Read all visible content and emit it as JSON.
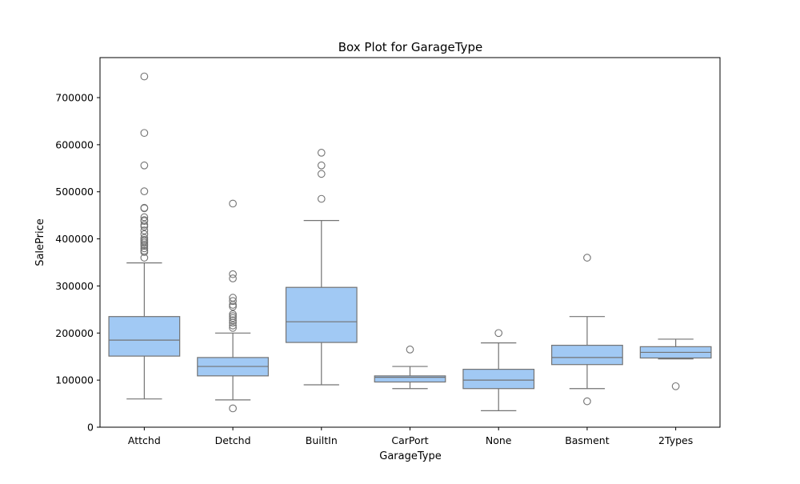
{
  "chart_data": {
    "type": "box",
    "title": "Box Plot for GarageType",
    "xlabel": "GarageType",
    "ylabel": "SalePrice",
    "ylim": [
      0,
      785000
    ],
    "yticks": [
      0,
      100000,
      200000,
      300000,
      400000,
      500000,
      600000,
      700000
    ],
    "grid": false,
    "legend": "none",
    "colors": {
      "box_fill": "#a1c9f4",
      "line": "#737373",
      "axis": "#000000"
    },
    "categories": [
      "Attchd",
      "Detchd",
      "BuiltIn",
      "CarPort",
      "None",
      "Basment",
      "2Types"
    ],
    "boxes": [
      {
        "category": "Attchd",
        "whisker_low": 60000,
        "q1": 151000,
        "median": 185000,
        "q3": 235000,
        "whisker_high": 349000,
        "outliers": [
          745000,
          625000,
          556000,
          501000,
          466000,
          465000,
          446000,
          440000,
          438000,
          430000,
          426000,
          418000,
          410000,
          402000,
          398000,
          395000,
          392000,
          388000,
          385000,
          380000,
          375000,
          372000,
          360000
        ]
      },
      {
        "category": "Detchd",
        "whisker_low": 58000,
        "q1": 109000,
        "median": 129000,
        "q3": 148000,
        "whisker_high": 200000,
        "outliers": [
          475000,
          325000,
          316000,
          275000,
          268000,
          260000,
          256000,
          240000,
          236000,
          232000,
          227000,
          222000,
          216000,
          211000,
          40000
        ]
      },
      {
        "category": "BuiltIn",
        "whisker_low": 90000,
        "q1": 180000,
        "median": 224000,
        "q3": 297000,
        "whisker_high": 439000,
        "outliers": [
          583000,
          556000,
          538000,
          485000
        ]
      },
      {
        "category": "CarPort",
        "whisker_low": 82000,
        "q1": 96000,
        "median": 106000,
        "q3": 109000,
        "whisker_high": 129000,
        "outliers": [
          165000
        ]
      },
      {
        "category": "None",
        "whisker_low": 35000,
        "q1": 82000,
        "median": 100000,
        "q3": 123000,
        "whisker_high": 179000,
        "outliers": [
          200000
        ]
      },
      {
        "category": "Basment",
        "whisker_low": 82000,
        "q1": 133000,
        "median": 148000,
        "q3": 174000,
        "whisker_high": 235000,
        "outliers": [
          360000,
          55000
        ]
      },
      {
        "category": "2Types",
        "whisker_low": 145000,
        "q1": 147000,
        "median": 159000,
        "q3": 171000,
        "whisker_high": 187000,
        "outliers": [
          87000
        ]
      }
    ]
  }
}
